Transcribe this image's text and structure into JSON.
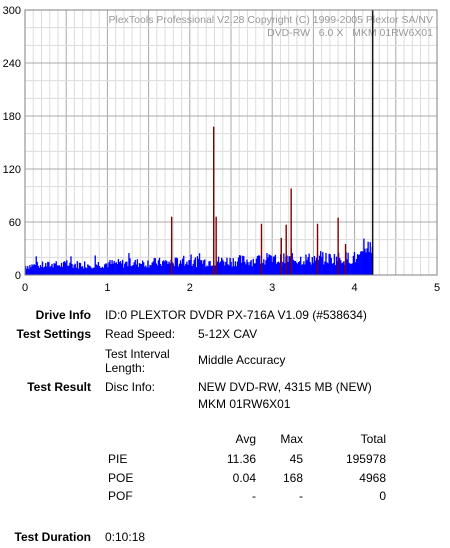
{
  "chart_data": {
    "type": "bar",
    "watermark_line1": "PlexTools Professional V2.28 Copyright (C) 1999-2005 Plextor SA/NV",
    "watermark_line2": "DVD-RW   6.0 X   MKM 01RW6X01",
    "xlim": [
      0,
      5
    ],
    "ylim": [
      0,
      300
    ],
    "x_ticks": [
      "0",
      "1",
      "2",
      "3",
      "4",
      "5"
    ],
    "y_ticks": [
      "0",
      "60",
      "120",
      "180",
      "240",
      "300"
    ],
    "grid": true,
    "colors": {
      "pie": "#0000ff",
      "poe": "#800000",
      "end_marker": "#000000",
      "grid": "#c0c0c0"
    },
    "end_marker_x": 4.22,
    "series": [
      {
        "name": "PIE",
        "x_start": 0.0,
        "x_end": 4.22,
        "base_level": 11.36,
        "max": 45
      },
      {
        "name": "POE",
        "spikes": [
          {
            "x": 1.78,
            "y": 66
          },
          {
            "x": 2.29,
            "y": 168
          },
          {
            "x": 2.32,
            "y": 66
          },
          {
            "x": 2.87,
            "y": 58
          },
          {
            "x": 3.11,
            "y": 42
          },
          {
            "x": 3.17,
            "y": 57
          },
          {
            "x": 3.23,
            "y": 98
          },
          {
            "x": 3.55,
            "y": 58
          },
          {
            "x": 3.8,
            "y": 65
          },
          {
            "x": 3.89,
            "y": 35
          }
        ]
      }
    ]
  },
  "info": {
    "drive_info_label": "Drive Info",
    "drive_info_value": "ID:0 PLEXTOR DVDR PX-716A V1.09 (#538634)",
    "test_settings_label": "Test Settings",
    "read_speed_label": "Read Speed:",
    "read_speed_value": "5-12X CAV",
    "test_interval_label_1": "Test Interval",
    "test_interval_label_2": "Length:",
    "test_interval_value": "Middle Accuracy",
    "test_result_label": "Test Result",
    "disc_info_label": "Disc Info:",
    "disc_info_value_1": "NEW DVD-RW, 4315 MB (NEW)",
    "disc_info_value_2": "MKM 01RW6X01",
    "columns": [
      "Avg",
      "Max",
      "Total"
    ],
    "rows": [
      {
        "name": "PIE",
        "avg": "11.36",
        "max": "45",
        "total": "195978"
      },
      {
        "name": "POE",
        "avg": "0.04",
        "max": "168",
        "total": "4968"
      },
      {
        "name": "POF",
        "avg": "-",
        "max": "-",
        "total": "0"
      }
    ],
    "test_duration_label": "Test Duration",
    "test_duration_value": "0:10:18"
  }
}
